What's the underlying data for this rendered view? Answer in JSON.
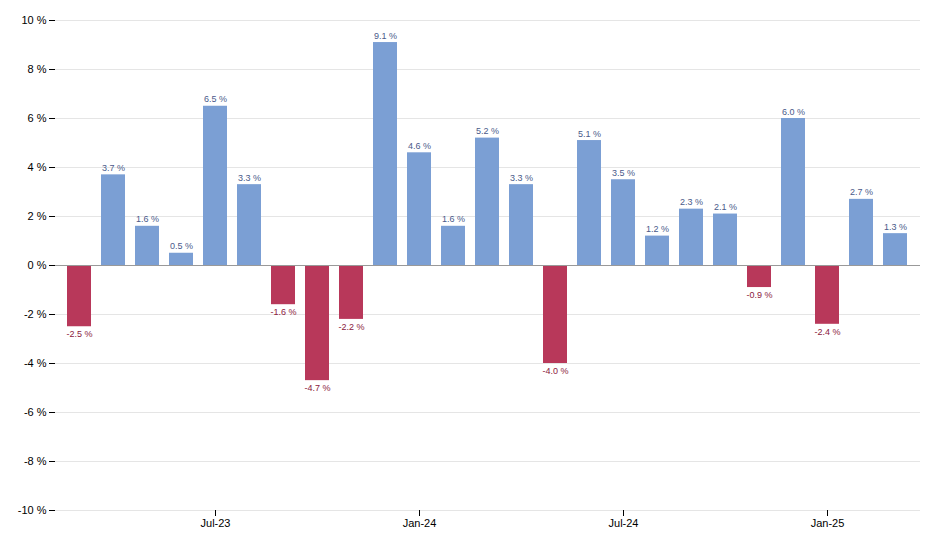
{
  "chart_data": {
    "type": "bar",
    "categories": [
      null,
      null,
      null,
      null,
      "Jul-23",
      null,
      null,
      null,
      null,
      null,
      "Jan-24",
      null,
      null,
      null,
      null,
      null,
      "Jul-24",
      null,
      null,
      null,
      null,
      null,
      "Jan-25",
      null,
      null
    ],
    "values": [
      -2.5,
      3.7,
      1.6,
      0.5,
      6.5,
      3.3,
      -1.6,
      -4.7,
      -2.2,
      9.1,
      4.6,
      1.6,
      5.2,
      3.3,
      -4.0,
      5.1,
      3.5,
      1.2,
      2.3,
      2.1,
      -0.9,
      6.0,
      -2.4,
      2.7,
      1.3
    ],
    "value_labels": [
      "-2.5 %",
      "3.7 %",
      "1.6 %",
      "0.5 %",
      "6.5 %",
      "3.3 %",
      "-1.6 %",
      "-4.7 %",
      "-2.2 %",
      "9.1 %",
      "4.6 %",
      "1.6 %",
      "5.2 %",
      "3.3 %",
      "-4.0 %",
      "5.1 %",
      "3.5 %",
      "1.2 %",
      "2.3 %",
      "2.1 %",
      "-0.9 %",
      "6.0 %",
      "-2.4 %",
      "2.7 %",
      "1.3 %"
    ],
    "colors": [
      "#B8385A",
      "#7B9FD4",
      "#7B9FD4",
      "#7B9FD4",
      "#7B9FD4",
      "#7B9FD4",
      "#B8385A",
      "#B8385A",
      "#B8385A",
      "#7B9FD4",
      "#7B9FD4",
      "#7B9FD4",
      "#7B9FD4",
      "#7B9FD4",
      "#B8385A",
      "#7B9FD4",
      "#7B9FD4",
      "#7B9FD4",
      "#7B9FD4",
      "#7B9FD4",
      "#B8385A",
      "#7B9FD4",
      "#B8385A",
      "#7B9FD4",
      "#7B9FD4"
    ],
    "ylim": [
      -10,
      10
    ],
    "yticks": [
      {
        "value": -10,
        "label": "-10 %"
      },
      {
        "value": -8,
        "label": "-8 %"
      },
      {
        "value": -6,
        "label": "-6 %"
      },
      {
        "value": -4,
        "label": "-4 %"
      },
      {
        "value": -2,
        "label": "-2 %"
      },
      {
        "value": 0,
        "label": "0 %"
      },
      {
        "value": 2,
        "label": "2 %"
      },
      {
        "value": 4,
        "label": "4 %"
      },
      {
        "value": 6,
        "label": "6 %"
      },
      {
        "value": 8,
        "label": "8 %"
      },
      {
        "value": 10,
        "label": "10 %"
      }
    ],
    "grid": true,
    "data_labels": true
  }
}
